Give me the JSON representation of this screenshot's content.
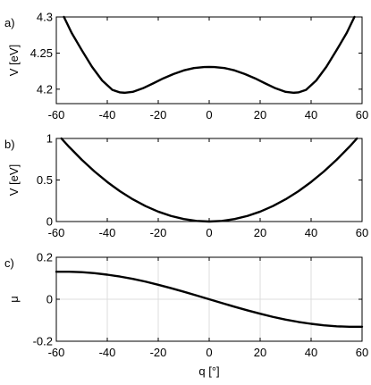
{
  "chart_data": [
    {
      "type": "line",
      "panel_label": "a)",
      "xlabel": "",
      "ylabel": "V [eV]",
      "xlim": [
        -60,
        60
      ],
      "ylim": [
        4.18,
        4.3
      ],
      "xticks": [
        "-60",
        "-40",
        "-20",
        "0",
        "20",
        "40",
        "60"
      ],
      "yticks": [
        "4.2",
        "4.25",
        "4.3"
      ],
      "ytick_values": [
        4.2,
        4.25,
        4.3
      ],
      "grid": false,
      "series": [
        {
          "x": [
            -57,
            -54,
            -50,
            -46,
            -42,
            -38,
            -35,
            -33,
            -30,
            -26,
            -22,
            -18,
            -14,
            -10,
            -6,
            -2,
            0,
            2,
            6,
            10,
            14,
            18,
            22,
            26,
            30,
            33,
            35,
            38,
            42,
            46,
            50,
            54,
            57
          ],
          "y": [
            4.3,
            4.278,
            4.254,
            4.231,
            4.212,
            4.199,
            4.1955,
            4.195,
            4.1963,
            4.2013,
            4.208,
            4.215,
            4.221,
            4.226,
            4.2293,
            4.2306,
            4.2308,
            4.2306,
            4.2293,
            4.226,
            4.221,
            4.215,
            4.208,
            4.2013,
            4.1963,
            4.195,
            4.1955,
            4.199,
            4.212,
            4.231,
            4.254,
            4.278,
            4.3
          ]
        }
      ]
    },
    {
      "type": "line",
      "panel_label": "b)",
      "xlabel": "",
      "ylabel": "V [eV]",
      "xlim": [
        -60,
        60
      ],
      "ylim": [
        0,
        1
      ],
      "xticks": [
        "-60",
        "-40",
        "-20",
        "0",
        "20",
        "40",
        "60"
      ],
      "yticks": [
        "0",
        "0.5",
        "1"
      ],
      "ytick_values": [
        0,
        0.5,
        1
      ],
      "grid": false,
      "series": [
        {
          "x": [
            -58,
            -55,
            -50,
            -45,
            -40,
            -35,
            -30,
            -25,
            -20,
            -15,
            -10,
            -5,
            0,
            5,
            10,
            15,
            20,
            25,
            30,
            35,
            40,
            45,
            50,
            55,
            58
          ],
          "y": [
            1.0,
            0.899,
            0.743,
            0.602,
            0.476,
            0.364,
            0.268,
            0.186,
            0.119,
            0.067,
            0.03,
            0.007,
            0.0,
            0.007,
            0.03,
            0.067,
            0.119,
            0.186,
            0.268,
            0.364,
            0.476,
            0.602,
            0.743,
            0.899,
            1.0
          ]
        }
      ]
    },
    {
      "type": "line",
      "panel_label": "c)",
      "xlabel": "q [°]",
      "ylabel": "μ",
      "xlim": [
        -60,
        60
      ],
      "ylim": [
        -0.2,
        0.2
      ],
      "xticks": [
        "-60",
        "-40",
        "-20",
        "0",
        "20",
        "40",
        "60"
      ],
      "yticks": [
        "-0.2",
        "0",
        "0.2"
      ],
      "ytick_values": [
        -0.2,
        0,
        0.2
      ],
      "grid": true,
      "series": [
        {
          "x": [
            -60,
            -55,
            -50,
            -45,
            -40,
            -35,
            -30,
            -25,
            -20,
            -15,
            -10,
            -5,
            0,
            5,
            10,
            15,
            20,
            25,
            30,
            35,
            40,
            45,
            50,
            55,
            60
          ],
          "y": [
            0.131,
            0.131,
            0.129,
            0.124,
            0.117,
            0.108,
            0.097,
            0.084,
            0.069,
            0.053,
            0.036,
            0.018,
            0.0,
            -0.018,
            -0.036,
            -0.053,
            -0.069,
            -0.084,
            -0.097,
            -0.108,
            -0.117,
            -0.124,
            -0.129,
            -0.131,
            -0.131
          ]
        }
      ]
    }
  ]
}
